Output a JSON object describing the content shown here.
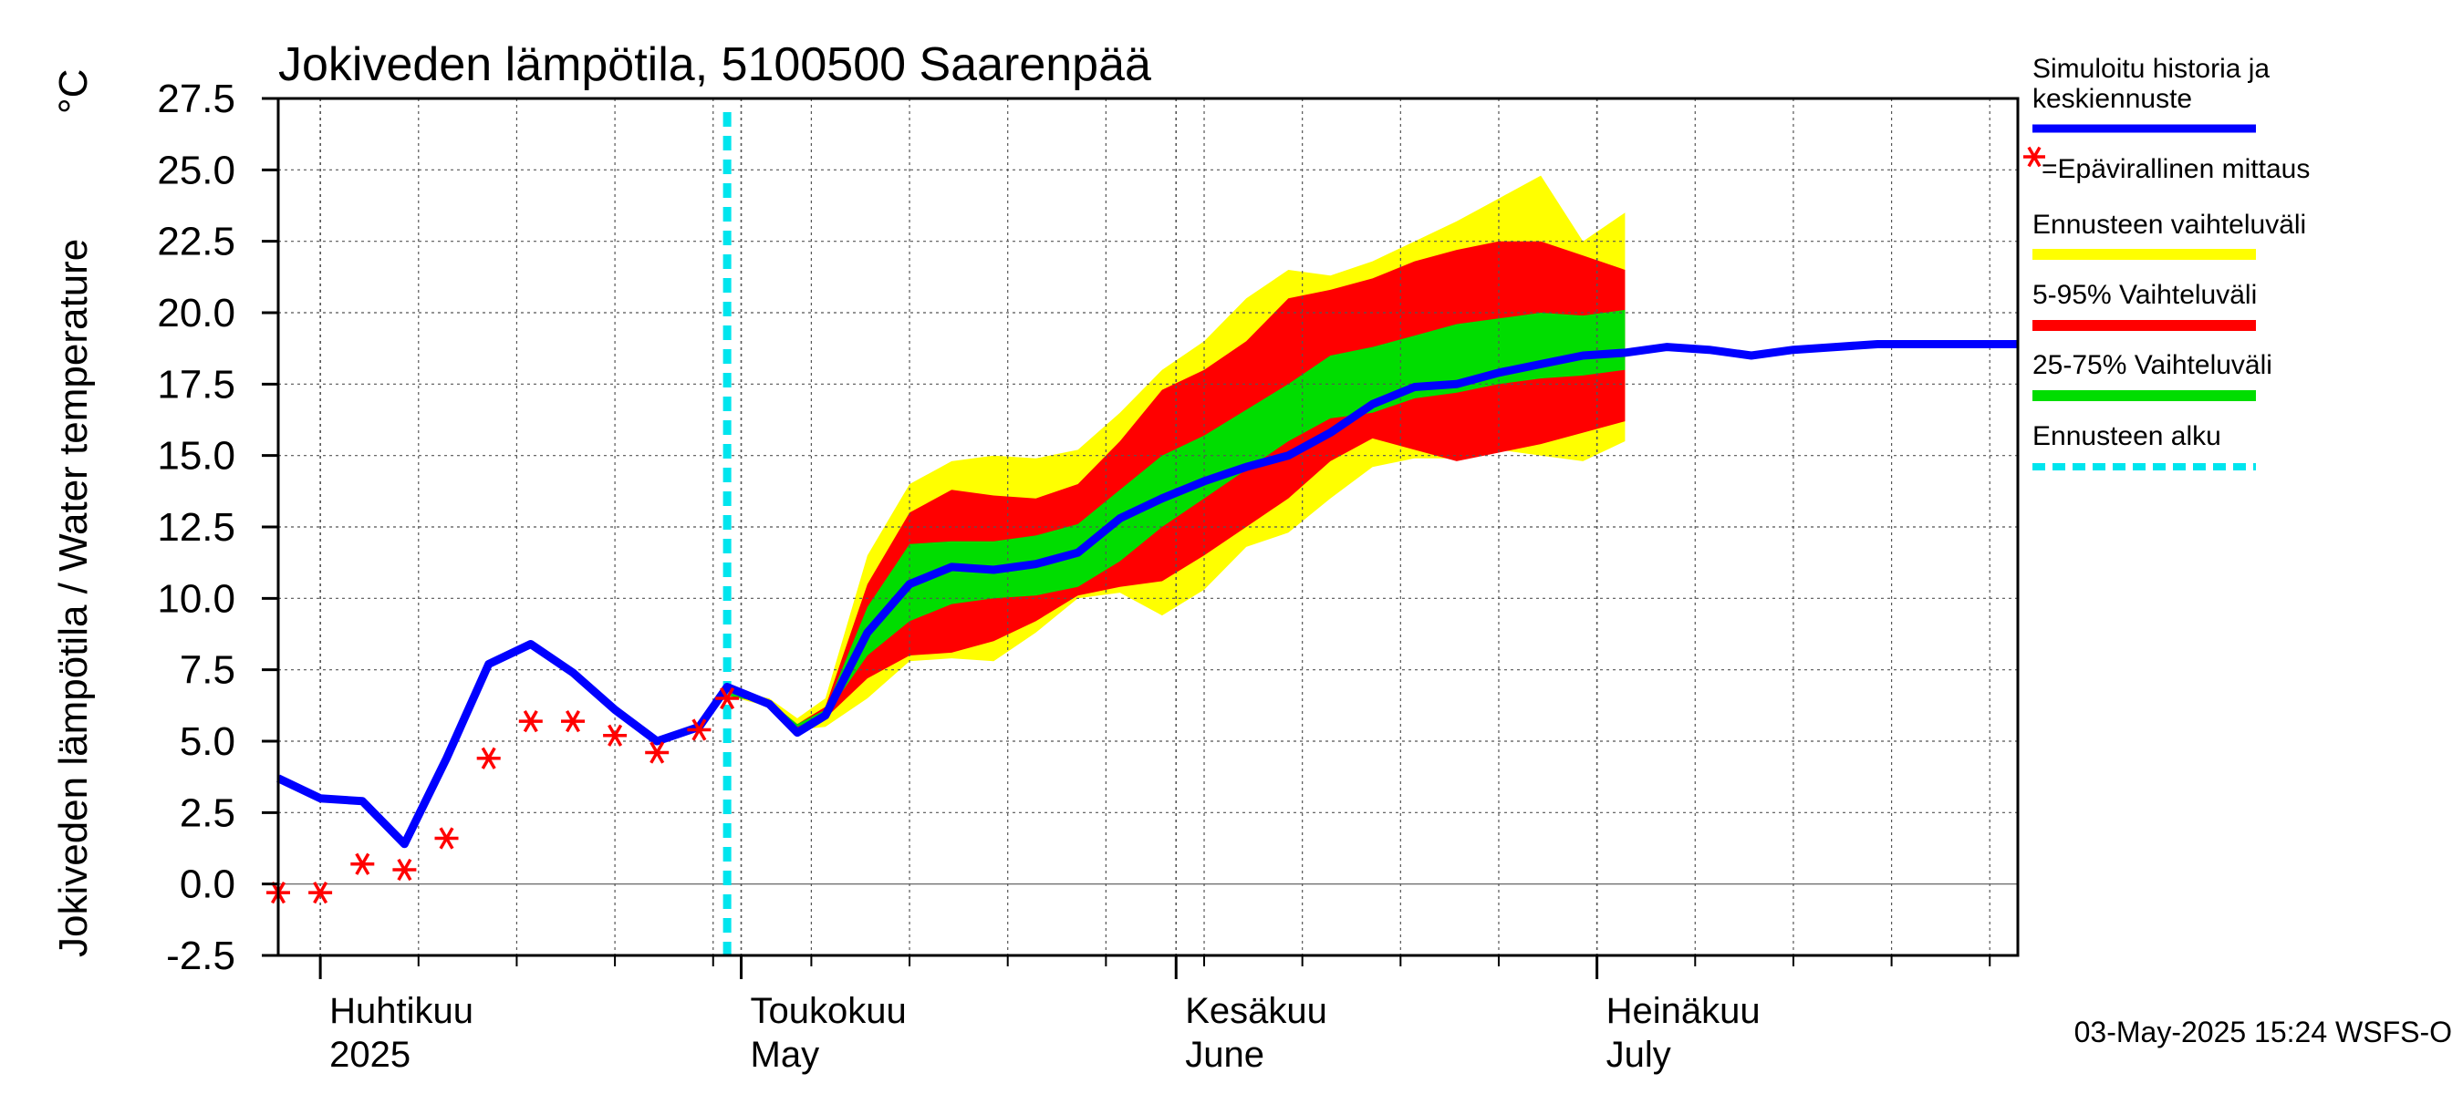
{
  "chart_data": {
    "type": "area",
    "title": "Jokiveden lämpötila, 5100500 Saarenpää",
    "ylabel": "Jokiveden lämpötila / Water temperature",
    "yunit": "°C",
    "ylim": [
      -2.5,
      27.5
    ],
    "yticks": [
      -2.5,
      0.0,
      2.5,
      5.0,
      7.5,
      10.0,
      12.5,
      15.0,
      17.5,
      20.0,
      22.5,
      25.0,
      27.5
    ],
    "ytick_labels": [
      "-2.5",
      "0.0",
      "2.5",
      "5.0",
      "7.5",
      "10.0",
      "12.5",
      "15.0",
      "17.5",
      "20.0",
      "22.5",
      "25.0",
      "27.5"
    ],
    "xlim": [
      "2025-03-29",
      "2025-07-31"
    ],
    "grid": true,
    "x_month_labels": [
      {
        "date": "2025-04-01",
        "fi": "Huhtikuu",
        "en": "2025"
      },
      {
        "date": "2025-05-01",
        "fi": "Toukokuu",
        "en": "May"
      },
      {
        "date": "2025-06-01",
        "fi": "Kesäkuu",
        "en": "June"
      },
      {
        "date": "2025-07-01",
        "fi": "Heinäkuu",
        "en": "July"
      }
    ],
    "forecast_start": "2025-04-30",
    "x": [
      "2025-03-29",
      "2025-04-01",
      "2025-04-04",
      "2025-04-07",
      "2025-04-10",
      "2025-04-13",
      "2025-04-16",
      "2025-04-19",
      "2025-04-22",
      "2025-04-25",
      "2025-04-28",
      "2025-04-30",
      "2025-05-03",
      "2025-05-05",
      "2025-05-07",
      "2025-05-10",
      "2025-05-13",
      "2025-05-16",
      "2025-05-19",
      "2025-05-22",
      "2025-05-25",
      "2025-05-28",
      "2025-05-31",
      "2025-06-03",
      "2025-06-06",
      "2025-06-09",
      "2025-06-12",
      "2025-06-15",
      "2025-06-18",
      "2025-06-21",
      "2025-06-24",
      "2025-06-27",
      "2025-06-30",
      "2025-07-03",
      "2025-07-06",
      "2025-07-09",
      "2025-07-12",
      "2025-07-15",
      "2025-07-18",
      "2025-07-21",
      "2025-07-24",
      "2025-07-27",
      "2025-07-31"
    ],
    "series": [
      {
        "name": "Simuloitu historia ja keskiennuste",
        "color": "#0000ff",
        "values": [
          3.7,
          3.0,
          2.9,
          1.4,
          4.4,
          7.7,
          8.4,
          7.4,
          6.1,
          5.0,
          5.5,
          6.9,
          6.3,
          5.3,
          5.9,
          8.8,
          10.5,
          11.1,
          11.0,
          11.2,
          11.6,
          12.8,
          13.5,
          14.1,
          14.6,
          15.0,
          15.8,
          16.8,
          17.4,
          17.5,
          17.9,
          18.2,
          18.5,
          18.6,
          18.8,
          18.7,
          18.5,
          18.7,
          18.8,
          18.9,
          18.9,
          18.9,
          18.9
        ]
      },
      {
        "name": "Ennusteen vaihteluväli",
        "color": "#ffff00",
        "lower": [
          6.6,
          6.2,
          5.4,
          5.5,
          6.5,
          7.8,
          7.9,
          7.8,
          8.8,
          10.0,
          10.2,
          9.4,
          10.3,
          11.8,
          12.3,
          13.5,
          14.6,
          14.9,
          14.9,
          15.2,
          15.0,
          14.8,
          15.5
        ],
        "upper": [
          6.8,
          6.5,
          5.8,
          6.5,
          11.5,
          14.0,
          14.8,
          15.0,
          14.9,
          15.2,
          16.5,
          18.0,
          19.0,
          20.5,
          21.5,
          21.3,
          21.8,
          22.5,
          23.2,
          24.0,
          24.8,
          22.5,
          23.5
        ]
      },
      {
        "name": "5-95% Vaihteluväli",
        "color": "#ff0000",
        "lower": [
          6.6,
          6.3,
          5.4,
          5.8,
          7.2,
          8.0,
          8.1,
          8.5,
          9.2,
          10.1,
          10.4,
          10.6,
          11.5,
          12.5,
          13.5,
          14.8,
          15.6,
          15.2,
          14.8,
          15.1,
          15.4,
          15.8,
          16.2
        ],
        "upper": [
          6.7,
          6.4,
          5.6,
          6.2,
          10.5,
          13.0,
          13.8,
          13.6,
          13.5,
          14.0,
          15.5,
          17.3,
          18.0,
          19.0,
          20.5,
          20.8,
          21.2,
          21.8,
          22.2,
          22.5,
          22.5,
          22.0,
          21.5
        ]
      },
      {
        "name": "25-75% Vaihteluväli",
        "color": "#00dd00",
        "lower": [
          6.6,
          6.3,
          5.5,
          5.9,
          8.0,
          9.2,
          9.8,
          10.0,
          10.1,
          10.4,
          11.3,
          12.5,
          13.5,
          14.5,
          15.5,
          16.3,
          16.5,
          17.0,
          17.2,
          17.5,
          17.7,
          17.8,
          18.0
        ],
        "upper": [
          6.7,
          6.4,
          5.6,
          6.1,
          9.7,
          11.9,
          12.0,
          12.0,
          12.2,
          12.6,
          13.8,
          15.0,
          15.7,
          16.6,
          17.5,
          18.5,
          18.8,
          19.2,
          19.6,
          19.8,
          20.0,
          19.9,
          20.1
        ]
      },
      {
        "name": "=Epävirallinen mittaus",
        "color": "#ff0000",
        "x": [
          "2025-03-29",
          "2025-04-01",
          "2025-04-04",
          "2025-04-07",
          "2025-04-10",
          "2025-04-13",
          "2025-04-16",
          "2025-04-19",
          "2025-04-22",
          "2025-04-25",
          "2025-04-28",
          "2025-04-30"
        ],
        "values": [
          -0.3,
          -0.3,
          0.7,
          0.5,
          1.6,
          4.4,
          5.7,
          5.7,
          5.2,
          4.6,
          5.4,
          6.5
        ]
      }
    ],
    "band_x": [
      "2025-04-30",
      "2025-05-03",
      "2025-05-05",
      "2025-05-07",
      "2025-05-10",
      "2025-05-13",
      "2025-05-16",
      "2025-05-19",
      "2025-05-22",
      "2025-05-25",
      "2025-05-28",
      "2025-05-31",
      "2025-06-03",
      "2025-06-06",
      "2025-06-09",
      "2025-06-12",
      "2025-06-15",
      "2025-06-18",
      "2025-06-21",
      "2025-06-24",
      "2025-06-27",
      "2025-06-30",
      "2025-07-03"
    ],
    "legend": [
      {
        "label": "Simuloitu historia ja keskiennuste",
        "color": "#0000ff",
        "style": "line"
      },
      {
        "label": "=Epävirallinen mittaus",
        "color": "#ff0000",
        "style": "marker"
      },
      {
        "label": "Ennusteen vaihteluväli",
        "color": "#ffff00",
        "style": "band"
      },
      {
        "label": "5-95% Vaihteluväli",
        "color": "#ff0000",
        "style": "band"
      },
      {
        "label": "25-75% Vaihteluväli",
        "color": "#00dd00",
        "style": "band"
      },
      {
        "label": "Ennusteen alku",
        "color": "#00e5ee",
        "style": "dashed"
      }
    ],
    "legend_position": "right"
  },
  "footer": "03-May-2025 15:24 WSFS-O"
}
